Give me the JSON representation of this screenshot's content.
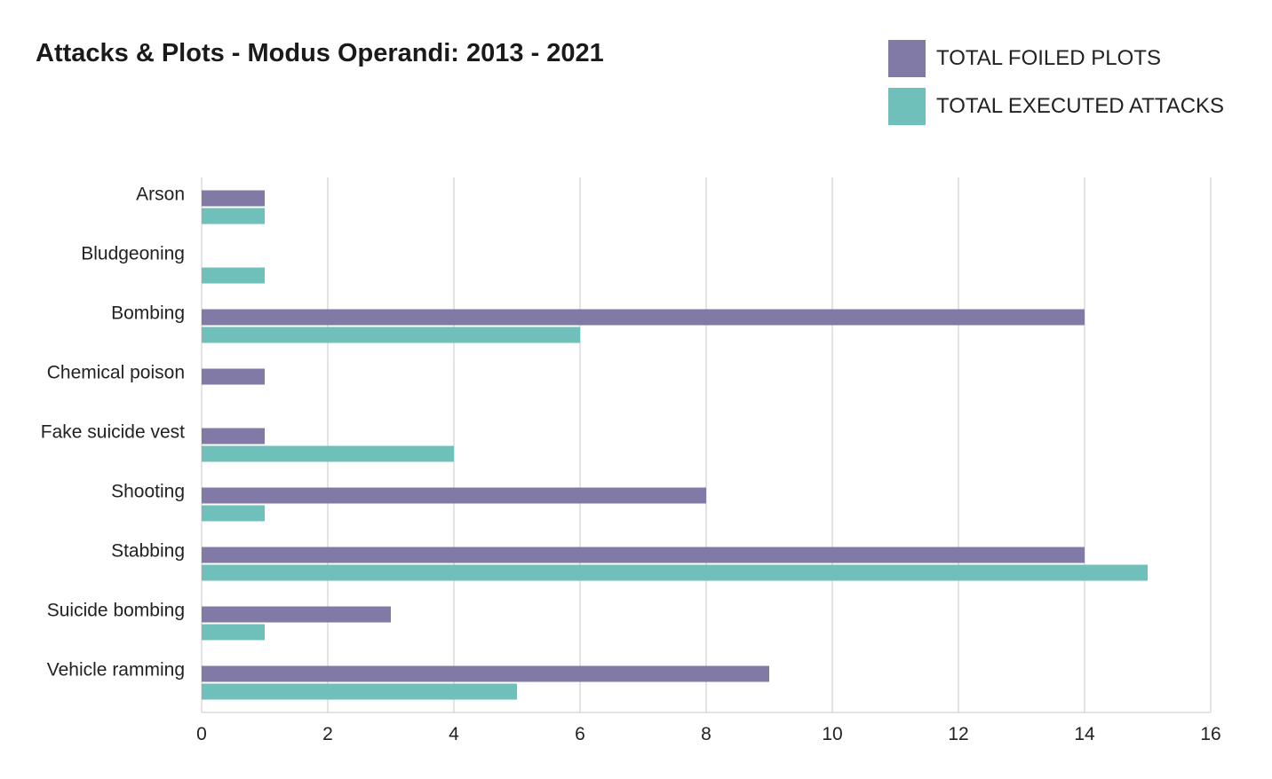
{
  "chart_data": {
    "type": "bar",
    "orientation": "horizontal",
    "title": "Attacks & Plots - Modus Operandi: 2013 - 2021",
    "categories": [
      "Arson",
      "Bludgeoning",
      "Bombing",
      "Chemical poison",
      "Fake suicide vest",
      "Shooting",
      "Stabbing",
      "Suicide bombing",
      "Vehicle ramming"
    ],
    "series": [
      {
        "name": "TOTAL FOILED PLOTS",
        "color": "#817aa6",
        "values": [
          1,
          0,
          14,
          1,
          1,
          8,
          14,
          3,
          9
        ]
      },
      {
        "name": "TOTAL EXECUTED ATTACKS",
        "color": "#6fbfba",
        "values": [
          1,
          1,
          6,
          0,
          4,
          1,
          15,
          1,
          5
        ]
      }
    ],
    "xlim": [
      0,
      16
    ],
    "xticks": [
      "0",
      "2",
      "4",
      "6",
      "8",
      "10",
      "12",
      "14",
      "16"
    ],
    "xlabel": "",
    "ylabel": "",
    "grid": "vertical",
    "legend_position": "top-right"
  }
}
